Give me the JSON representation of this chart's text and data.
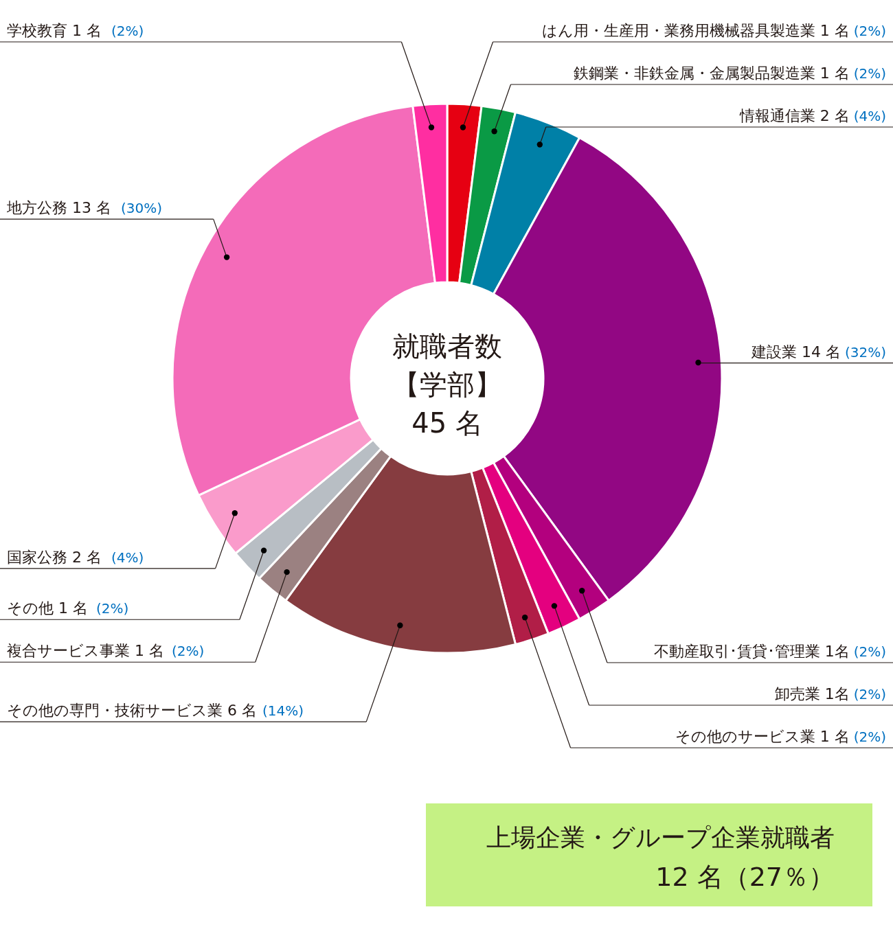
{
  "chart_data": {
    "type": "donut",
    "title": "就職者数",
    "subtitle": "【学部】",
    "annotations": [
      "45 名",
      "上場企業・グループ企業就職者",
      "12 名（27％）"
    ],
    "categories": [
      "はん用・生産用・業務用機械器具製造業",
      "鉄鋼業・非鉄金属・金属製品製造業",
      "情報通信業",
      "建設業",
      "不動産取引･賃貸･管理業",
      "卸売業",
      "その他のサービス業",
      "その他の専門・技術サービス業",
      "複合サービス事業",
      "その他",
      "国家公務",
      "地方公務",
      "学校教育"
    ],
    "values": [
      2,
      2,
      4,
      32,
      2,
      2,
      2,
      14,
      2,
      2,
      4,
      30,
      2
    ],
    "value_labels": [
      "1 名 (2%)",
      "1 名 (2%)",
      "2 名 (4%)",
      "14 名 (32%)",
      "1名 (2%)",
      "1名 (2%)",
      "1 名 (2%)",
      "6 名 (14%)",
      "1 名 (2%)",
      "1 名 (2%)",
      "2 名 (4%)",
      "13 名 (30%)",
      "1 名 (2%)"
    ],
    "colors": [
      "#e60012",
      "#0a9a45",
      "#0080a7",
      "#920783",
      "#b3007e",
      "#e4007f",
      "#b11e47",
      "#863c40",
      "#9b8181",
      "#b8bec4",
      "#fa9bcb",
      "#f46bb9",
      "#ff2ea1"
    ]
  }
}
